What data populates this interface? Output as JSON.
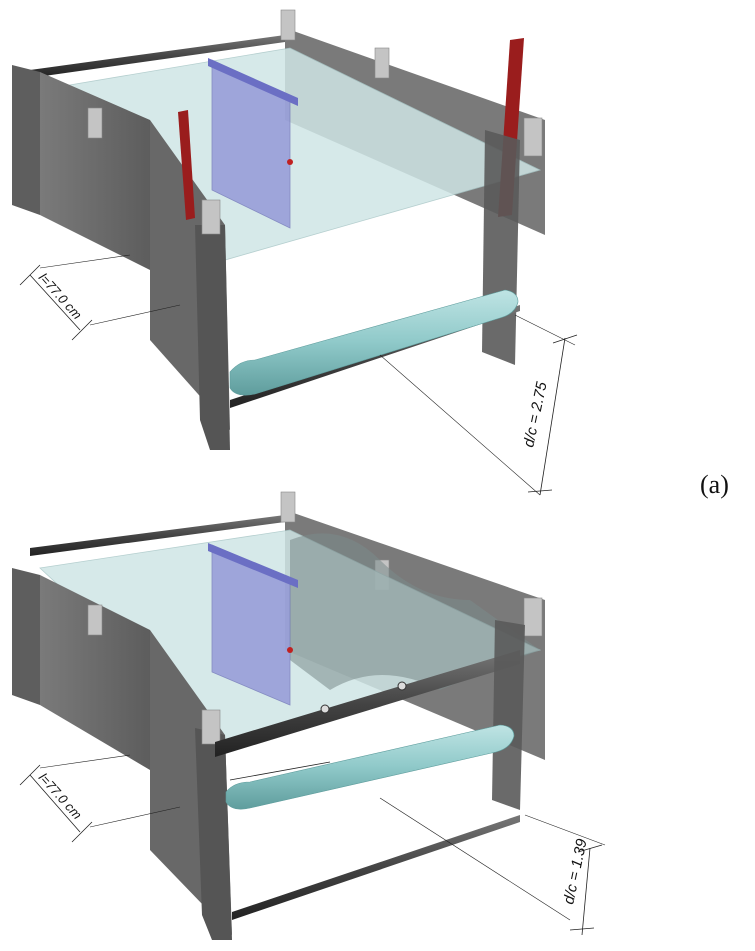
{
  "panels": [
    {
      "id": "a",
      "label": "(a)",
      "span_dimension": "l=77.0 cm",
      "gap_ratio": "d/c = 2.75"
    },
    {
      "id": "b",
      "label": "",
      "span_dimension": "l=77.0 cm",
      "gap_ratio": "d/c = 1.39"
    }
  ],
  "colors": {
    "frame_steel": "#6f6f6f",
    "frame_dark": "#3d3d3d",
    "water_surface": "#cfe6e6",
    "cylinder": "#8fc9c9",
    "gate_plate": "#8c8fd6",
    "wave_probe": "#9a1d1d",
    "tab": "#c4c4c4"
  }
}
